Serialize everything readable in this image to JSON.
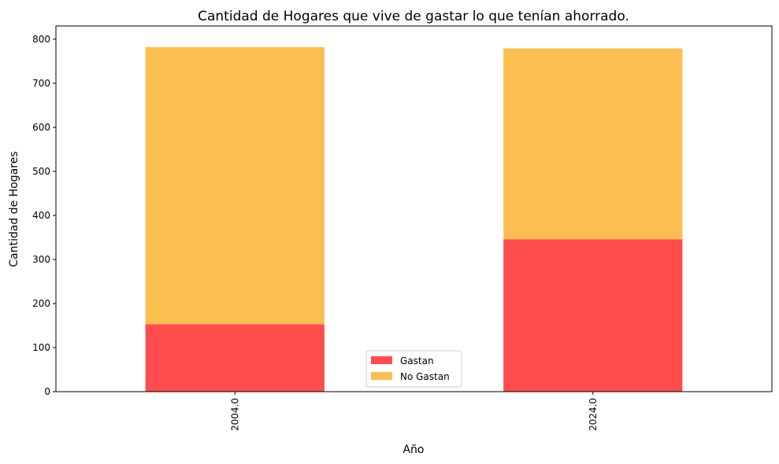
{
  "chart_data": {
    "type": "bar",
    "stacked": true,
    "title": "Cantidad de Hogares que vive de gastar lo que tenían ahorrado.",
    "xlabel": "Año",
    "ylabel": "Cantidad de Hogares",
    "categories": [
      "2004.0",
      "2024.0"
    ],
    "series": [
      {
        "name": "Gastan",
        "values": [
          153,
          346
        ],
        "color": "#ff4c4c"
      },
      {
        "name": "No Gastan",
        "values": [
          629,
          433
        ],
        "color": "#fdbe50"
      }
    ],
    "ylim": [
      0,
      830
    ],
    "yticks": [
      0,
      100,
      200,
      300,
      400,
      500,
      600,
      700,
      800
    ],
    "grid": false,
    "legend_position": "bottom-center"
  }
}
